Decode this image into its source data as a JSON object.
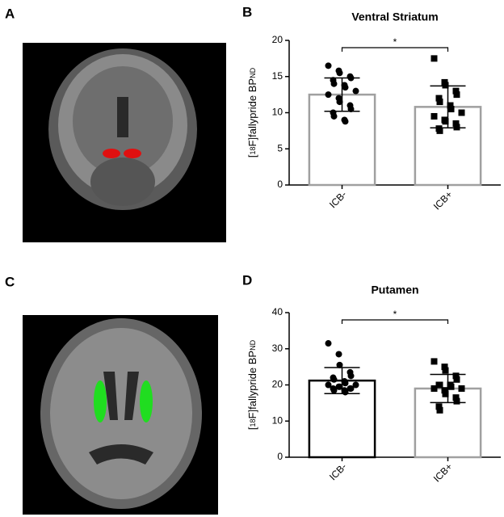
{
  "panel_labels": [
    "A",
    "B",
    "C",
    "D"
  ],
  "chart_data": [
    {
      "type": "bar",
      "title": "Ventral Striatum",
      "ylabel": [
        "[",
        "18",
        "F]fallypride BP",
        "ND"
      ],
      "categories": [
        "ICB-",
        "ICB+"
      ],
      "values": [
        12.5,
        10.8
      ],
      "errors": [
        2.3,
        2.9
      ],
      "bar_colors": [
        "#a0a0a0",
        "#a0a0a0"
      ],
      "markers": [
        "circle",
        "square"
      ],
      "points": [
        [
          16.5,
          15.8,
          15.5,
          15,
          14.8,
          14.5,
          14,
          13.8,
          13.5,
          13,
          12.5,
          12,
          11.5,
          11,
          10.5,
          10,
          9.5,
          9,
          8.8
        ],
        [
          17.5,
          14.2,
          13.8,
          13,
          12.5,
          12,
          11.5,
          11,
          10.5,
          10,
          9.5,
          9,
          8.8,
          8.5,
          8,
          7.8,
          7.5
        ]
      ],
      "annotation": "*",
      "ylim": [
        0,
        20
      ],
      "yticks": [
        0,
        5,
        10,
        15,
        20
      ]
    },
    {
      "type": "bar",
      "title": "Putamen",
      "ylabel": [
        "[",
        "18",
        "F]fallypride BP",
        "ND"
      ],
      "categories": [
        "ICB-",
        "ICB+"
      ],
      "values": [
        21.2,
        19
      ],
      "errors": [
        3.6,
        3.9
      ],
      "bar_colors": [
        "#000000",
        "#a0a0a0"
      ],
      "markers": [
        "circle",
        "square"
      ],
      "points": [
        [
          31.5,
          28.5,
          25.5,
          23.5,
          22.5,
          22,
          21.5,
          21,
          20.5,
          20,
          20,
          19.5,
          19.5,
          19,
          19,
          19,
          18.5,
          18.5,
          18
        ],
        [
          26.5,
          25,
          24,
          22.5,
          21.5,
          20,
          20,
          20,
          19.5,
          19,
          19,
          18.5,
          17.5,
          16.5,
          15.5,
          14,
          13
        ]
      ],
      "annotation": "*",
      "ylim": [
        0,
        40
      ],
      "yticks": [
        0,
        10,
        20,
        30,
        40
      ]
    }
  ]
}
